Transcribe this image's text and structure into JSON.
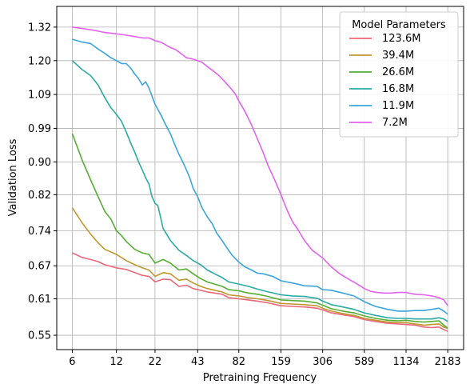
{
  "chart_data": {
    "type": "line",
    "title": "",
    "xlabel": "Pretraining Frequency",
    "ylabel": "Validation Loss",
    "x_scale": "log",
    "y_scale": "log",
    "xlim": [
      4.7,
      2800
    ],
    "ylim": [
      0.528,
      1.4
    ],
    "x_ticks": [
      6,
      12,
      22,
      43,
      82,
      159,
      306,
      589,
      1134,
      2183
    ],
    "y_ticks": [
      0.55,
      0.61,
      0.67,
      0.74,
      0.82,
      0.9,
      0.99,
      1.09,
      1.2,
      1.32
    ],
    "y_tick_labels": [
      "0.55",
      "0.61",
      "0.67",
      "0.74",
      "0.82",
      "0.90",
      "0.99",
      "1.09",
      "1.20",
      "1.32"
    ],
    "grid": true,
    "legend": {
      "title": "Model Parameters",
      "position": "top-right"
    },
    "series": [
      {
        "name": "123.6M",
        "color": "#e8697a",
        "x": [
          6,
          7,
          8,
          9,
          10,
          12,
          14,
          16,
          18,
          20,
          22,
          25,
          28,
          32,
          36,
          40,
          45,
          50,
          56,
          63,
          70,
          82,
          95,
          110,
          130,
          159,
          190,
          230,
          280,
          306,
          350,
          420,
          500,
          589,
          700,
          850,
          1000,
          1134,
          1300,
          1500,
          1700,
          1900,
          2050,
          2183
        ],
        "y": [
          0.695,
          0.686,
          0.682,
          0.678,
          0.672,
          0.666,
          0.663,
          0.657,
          0.652,
          0.65,
          0.64,
          0.645,
          0.644,
          0.632,
          0.634,
          0.628,
          0.625,
          0.622,
          0.62,
          0.618,
          0.612,
          0.61,
          0.608,
          0.606,
          0.603,
          0.598,
          0.597,
          0.596,
          0.594,
          0.591,
          0.586,
          0.583,
          0.58,
          0.575,
          0.572,
          0.569,
          0.568,
          0.567,
          0.566,
          0.563,
          0.562,
          0.563,
          0.559,
          0.556
        ]
      },
      {
        "name": "39.4M",
        "color": "#c0962e",
        "x": [
          6,
          7,
          8,
          9,
          10,
          12,
          14,
          16,
          18,
          20,
          22,
          25,
          28,
          32,
          36,
          40,
          45,
          50,
          56,
          63,
          70,
          82,
          95,
          110,
          130,
          159,
          190,
          230,
          280,
          306,
          350,
          420,
          500,
          589,
          700,
          850,
          1000,
          1134,
          1300,
          1500,
          1700,
          1900,
          2050,
          2183
        ],
        "y": [
          0.79,
          0.757,
          0.733,
          0.715,
          0.702,
          0.692,
          0.68,
          0.672,
          0.666,
          0.662,
          0.65,
          0.657,
          0.655,
          0.643,
          0.645,
          0.638,
          0.632,
          0.628,
          0.625,
          0.622,
          0.617,
          0.615,
          0.612,
          0.61,
          0.607,
          0.602,
          0.601,
          0.6,
          0.598,
          0.594,
          0.589,
          0.585,
          0.582,
          0.577,
          0.574,
          0.571,
          0.57,
          0.57,
          0.568,
          0.566,
          0.567,
          0.568,
          0.563,
          0.561
        ]
      },
      {
        "name": "26.6M",
        "color": "#56ad34",
        "x": [
          6,
          7,
          8,
          9,
          10,
          11,
          12,
          13,
          14,
          16,
          18,
          20,
          22,
          25,
          28,
          32,
          36,
          40,
          45,
          50,
          56,
          63,
          70,
          82,
          95,
          110,
          130,
          159,
          190,
          230,
          280,
          306,
          350,
          420,
          500,
          589,
          700,
          850,
          1000,
          1134,
          1300,
          1500,
          1700,
          1900,
          2050,
          2183
        ],
        "y": [
          0.975,
          0.905,
          0.855,
          0.815,
          0.782,
          0.765,
          0.74,
          0.73,
          0.718,
          0.702,
          0.695,
          0.692,
          0.675,
          0.682,
          0.675,
          0.662,
          0.664,
          0.655,
          0.646,
          0.64,
          0.636,
          0.632,
          0.626,
          0.624,
          0.62,
          0.618,
          0.614,
          0.608,
          0.607,
          0.606,
          0.603,
          0.599,
          0.593,
          0.589,
          0.586,
          0.581,
          0.577,
          0.574,
          0.573,
          0.574,
          0.572,
          0.571,
          0.572,
          0.573,
          0.566,
          0.561
        ]
      },
      {
        "name": "16.8M",
        "color": "#2aaaa4",
        "x": [
          6,
          7,
          8,
          9,
          10,
          11,
          12,
          13,
          14,
          15,
          16,
          17,
          18,
          19,
          20,
          21,
          22,
          23,
          25,
          28,
          32,
          36,
          40,
          45,
          50,
          56,
          63,
          70,
          82,
          95,
          110,
          130,
          159,
          190,
          230,
          280,
          306,
          350,
          420,
          500,
          589,
          700,
          850,
          1000,
          1134,
          1300,
          1500,
          1700,
          1900,
          2050,
          2183
        ],
        "y": [
          1.2,
          1.17,
          1.15,
          1.12,
          1.08,
          1.05,
          1.03,
          1.01,
          0.98,
          0.95,
          0.925,
          0.9,
          0.88,
          0.86,
          0.845,
          0.815,
          0.8,
          0.795,
          0.745,
          0.72,
          0.7,
          0.69,
          0.68,
          0.672,
          0.662,
          0.655,
          0.648,
          0.64,
          0.636,
          0.632,
          0.627,
          0.622,
          0.617,
          0.615,
          0.614,
          0.611,
          0.606,
          0.6,
          0.596,
          0.592,
          0.586,
          0.582,
          0.578,
          0.577,
          0.577,
          0.576,
          0.576,
          0.576,
          0.578,
          0.576,
          0.572
        ]
      },
      {
        "name": "11.9M",
        "color": "#3aa5dc",
        "x": [
          6,
          7,
          8,
          9,
          10,
          11,
          12,
          13,
          14,
          15,
          16,
          17,
          18,
          19,
          20,
          22,
          24,
          26,
          28,
          30,
          32,
          34,
          36,
          38,
          40,
          43,
          46,
          50,
          54,
          58,
          63,
          68,
          74,
          82,
          90,
          100,
          110,
          120,
          140,
          159,
          190,
          230,
          280,
          306,
          350,
          420,
          500,
          589,
          700,
          850,
          1000,
          1134,
          1300,
          1500,
          1700,
          1900,
          2050,
          2183
        ],
        "y": [
          1.275,
          1.265,
          1.26,
          1.24,
          1.225,
          1.21,
          1.2,
          1.19,
          1.19,
          1.175,
          1.155,
          1.14,
          1.12,
          1.13,
          1.11,
          1.06,
          1.03,
          1.0,
          0.975,
          0.945,
          0.92,
          0.9,
          0.88,
          0.86,
          0.835,
          0.815,
          0.79,
          0.77,
          0.755,
          0.735,
          0.72,
          0.705,
          0.69,
          0.677,
          0.668,
          0.662,
          0.656,
          0.655,
          0.65,
          0.642,
          0.638,
          0.633,
          0.632,
          0.626,
          0.625,
          0.62,
          0.615,
          0.605,
          0.597,
          0.592,
          0.589,
          0.589,
          0.59,
          0.59,
          0.592,
          0.594,
          0.589,
          0.584
        ]
      },
      {
        "name": "7.2M",
        "color": "#e262ee",
        "x": [
          6,
          7,
          8,
          9,
          10,
          12,
          14,
          16,
          18,
          20,
          22,
          24,
          26,
          28,
          30,
          33,
          36,
          40,
          43,
          46,
          50,
          55,
          60,
          66,
          72,
          78,
          82,
          90,
          100,
          110,
          120,
          130,
          140,
          159,
          175,
          190,
          210,
          230,
          260,
          306,
          350,
          400,
          460,
          520,
          589,
          650,
          720,
          800,
          900,
          1000,
          1134,
          1300,
          1500,
          1700,
          1900,
          2050,
          2183
        ],
        "y": [
          1.32,
          1.315,
          1.31,
          1.305,
          1.3,
          1.295,
          1.29,
          1.285,
          1.28,
          1.28,
          1.27,
          1.265,
          1.255,
          1.245,
          1.24,
          1.225,
          1.21,
          1.205,
          1.2,
          1.195,
          1.18,
          1.165,
          1.15,
          1.13,
          1.11,
          1.09,
          1.07,
          1.04,
          1.0,
          0.96,
          0.925,
          0.89,
          0.865,
          0.82,
          0.785,
          0.76,
          0.74,
          0.72,
          0.7,
          0.685,
          0.668,
          0.655,
          0.645,
          0.637,
          0.628,
          0.623,
          0.621,
          0.62,
          0.62,
          0.621,
          0.621,
          0.618,
          0.617,
          0.615,
          0.612,
          0.608,
          0.598
        ]
      }
    ]
  }
}
